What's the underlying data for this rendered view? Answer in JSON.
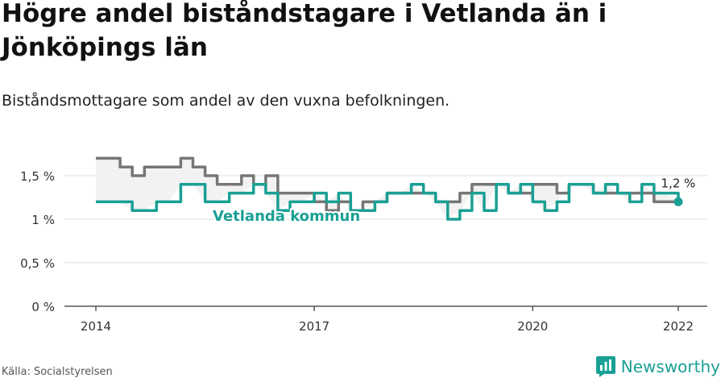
{
  "header": {
    "title": "Högre andel biståndstagare i Vetlanda än i Jönköpings län",
    "subtitle": "Biståndsmottagare som andel av den vuxna befolkningen."
  },
  "footer": {
    "source": "Källa: Socialstyrelsen",
    "brand": "Newsworthy"
  },
  "colors": {
    "county": "#767676",
    "municipality": "#1aa094",
    "fill": "#f2f2f2",
    "grid": "#dddddd"
  },
  "icons": {
    "brand": "newsworthy-logo-icon"
  },
  "chart_data": {
    "type": "line",
    "ylim": [
      0,
      1.8
    ],
    "xlim": [
      "2014-01",
      "2022-01"
    ],
    "y_ticks": [
      {
        "value": 0,
        "label": "0 %"
      },
      {
        "value": 0.5,
        "label": "0,5 %"
      },
      {
        "value": 1,
        "label": "1 %"
      },
      {
        "value": 1.5,
        "label": "1,5 %"
      }
    ],
    "x_ticks": [
      {
        "value": "2014-01",
        "label": "2014"
      },
      {
        "value": "2017-01",
        "label": "2017"
      },
      {
        "value": "2020-01",
        "label": "2020"
      },
      {
        "value": "2022-01",
        "label": "2022"
      }
    ],
    "series_label": "Vetlanda kommun",
    "end_label": "1,2 %",
    "series": [
      {
        "name": "",
        "role": "county",
        "x": [
          "2014-01",
          "2014-03",
          "2014-05",
          "2014-07",
          "2014-09",
          "2014-11",
          "2015-01",
          "2015-03",
          "2015-05",
          "2015-07",
          "2015-09",
          "2015-11",
          "2016-01",
          "2016-03",
          "2016-05",
          "2016-07",
          "2016-09",
          "2016-11",
          "2017-01",
          "2017-03",
          "2017-05",
          "2017-07",
          "2017-09",
          "2017-11",
          "2018-01",
          "2018-03",
          "2018-05",
          "2018-07",
          "2018-09",
          "2018-11",
          "2019-01",
          "2019-03",
          "2019-05",
          "2019-07",
          "2019-09",
          "2019-11",
          "2020-01",
          "2020-03",
          "2020-05",
          "2020-07",
          "2020-09",
          "2020-11",
          "2021-01",
          "2021-03",
          "2021-05",
          "2021-07",
          "2021-09",
          "2021-11",
          "2022-01"
        ],
        "values": [
          1.7,
          1.7,
          1.6,
          1.5,
          1.6,
          1.6,
          1.6,
          1.7,
          1.6,
          1.5,
          1.4,
          1.4,
          1.5,
          1.4,
          1.5,
          1.3,
          1.3,
          1.3,
          1.2,
          1.1,
          1.2,
          1.1,
          1.2,
          1.2,
          1.3,
          1.3,
          1.3,
          1.3,
          1.2,
          1.2,
          1.3,
          1.4,
          1.4,
          1.4,
          1.3,
          1.3,
          1.4,
          1.4,
          1.3,
          1.4,
          1.4,
          1.3,
          1.3,
          1.3,
          1.3,
          1.3,
          1.2,
          1.2,
          1.2
        ]
      },
      {
        "name": "Vetlanda kommun",
        "role": "municipality",
        "x": [
          "2014-01",
          "2014-03",
          "2014-05",
          "2014-07",
          "2014-09",
          "2014-11",
          "2015-01",
          "2015-03",
          "2015-05",
          "2015-07",
          "2015-09",
          "2015-11",
          "2016-01",
          "2016-03",
          "2016-05",
          "2016-07",
          "2016-09",
          "2016-11",
          "2017-01",
          "2017-03",
          "2017-05",
          "2017-07",
          "2017-09",
          "2017-11",
          "2018-01",
          "2018-03",
          "2018-05",
          "2018-07",
          "2018-09",
          "2018-11",
          "2019-01",
          "2019-03",
          "2019-05",
          "2019-07",
          "2019-09",
          "2019-11",
          "2020-01",
          "2020-03",
          "2020-05",
          "2020-07",
          "2020-09",
          "2020-11",
          "2021-01",
          "2021-03",
          "2021-05",
          "2021-07",
          "2021-09",
          "2021-11",
          "2022-01"
        ],
        "values": [
          1.2,
          1.2,
          1.2,
          1.1,
          1.1,
          1.2,
          1.2,
          1.4,
          1.4,
          1.2,
          1.2,
          1.3,
          1.3,
          1.4,
          1.3,
          1.1,
          1.2,
          1.2,
          1.3,
          1.2,
          1.3,
          1.1,
          1.1,
          1.2,
          1.3,
          1.3,
          1.4,
          1.3,
          1.2,
          1.0,
          1.1,
          1.3,
          1.1,
          1.4,
          1.3,
          1.4,
          1.2,
          1.1,
          1.2,
          1.4,
          1.4,
          1.3,
          1.4,
          1.3,
          1.2,
          1.4,
          1.3,
          1.3,
          1.2
        ]
      }
    ]
  }
}
